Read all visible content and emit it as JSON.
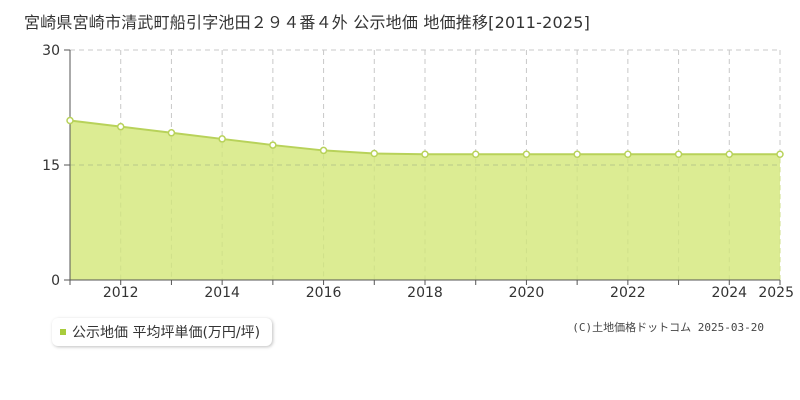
{
  "page": {
    "title": "宮崎県宮崎市清武町船引字池田２９４番４外 公示地価 地価推移[2011-2025]",
    "credit": "(C)土地価格ドットコム 2025-03-20"
  },
  "legend": {
    "label": "公示地価 平均坪単価(万円/坪)"
  },
  "chart_data": {
    "type": "area",
    "title": "宮崎県宮崎市清武町船引字池田２９４番４外 公示地価 地価推移[2011-2025]",
    "xlabel": "",
    "ylabel": "",
    "x": [
      2011,
      2012,
      2013,
      2014,
      2015,
      2016,
      2017,
      2018,
      2019,
      2020,
      2021,
      2022,
      2023,
      2024,
      2025
    ],
    "series": [
      {
        "name": "公示地価 平均坪単価(万円/坪)",
        "values": [
          20.8,
          20.0,
          19.2,
          18.4,
          17.6,
          16.9,
          16.5,
          16.4,
          16.4,
          16.4,
          16.4,
          16.4,
          16.4,
          16.4,
          16.4
        ]
      }
    ],
    "x_tick_labels": [
      "2012",
      "2014",
      "2016",
      "2018",
      "2020",
      "2022",
      "2024",
      "2025"
    ],
    "x_tick_values": [
      2012,
      2014,
      2016,
      2018,
      2020,
      2022,
      2024,
      2025
    ],
    "y_tick_labels": [
      "0",
      "15",
      "30"
    ],
    "y_tick_values": [
      0,
      15,
      30
    ],
    "xlim": [
      2011,
      2025
    ],
    "ylim": [
      0,
      30
    ],
    "grid": true,
    "legend_position": "bottom-left",
    "colors": {
      "fill": "#dcec93",
      "line": "#b8d25a",
      "marker_fill": "#ffffff",
      "grid": "#c8c8c8",
      "axis": "#555555",
      "legend_swatch": "#a8cc3c"
    }
  }
}
